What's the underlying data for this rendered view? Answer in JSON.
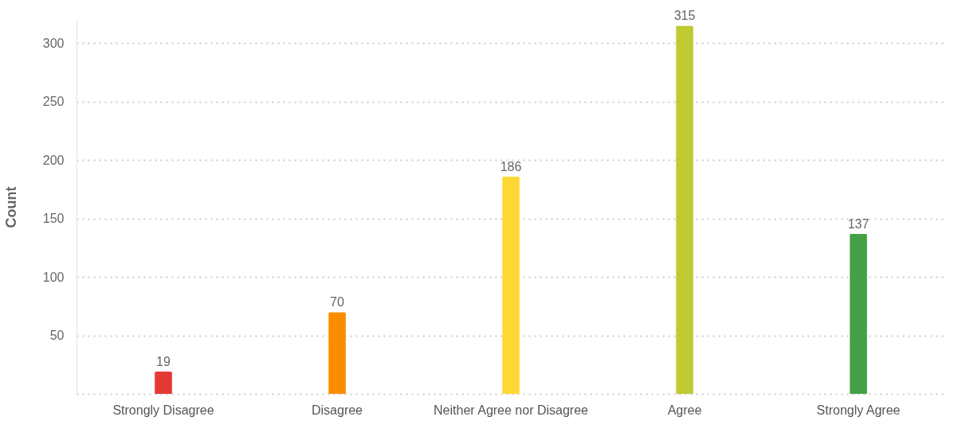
{
  "chart_data": {
    "type": "bar",
    "ylabel": "Count",
    "categories": [
      "Strongly Disagree",
      "Disagree",
      "Neither Agree nor Disagree",
      "Agree",
      "Strongly Agree"
    ],
    "values": [
      19,
      70,
      186,
      315,
      137
    ],
    "colors": [
      "#e53935",
      "#fb8c00",
      "#fdd835",
      "#c0ca33",
      "#43a047"
    ],
    "ylim": [
      0,
      320
    ],
    "yticks": [
      {
        "value": 0,
        "label": null
      },
      50,
      100,
      150,
      200,
      250,
      300
    ],
    "grid": "y",
    "data_labels": true
  }
}
